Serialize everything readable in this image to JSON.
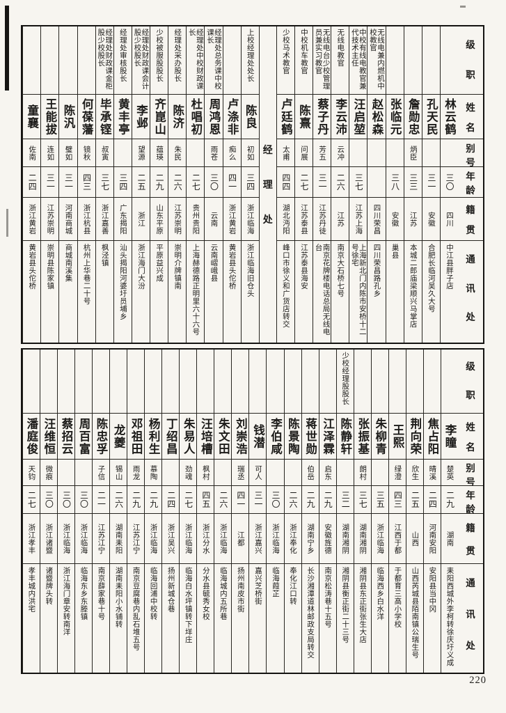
{
  "page": {
    "number": "220",
    "paper": "#f7f5f0",
    "ink": "#1c1b19"
  },
  "row_headers": {
    "rank": "级职",
    "name": "姓名",
    "alias": "别号",
    "age": "年龄",
    "origin": "籍贯",
    "address": "通讯处"
  },
  "sections": [
    {
      "id": "top",
      "divider_after": 9,
      "divider_label": "经理处",
      "persons": [
        {
          "rank": "",
          "name": "林云鹤",
          "alias": "",
          "age": "三〇",
          "origin": "四川",
          "address": "中江县胖子店"
        },
        {
          "rank": "",
          "name": "孔天民",
          "alias": "",
          "age": "三一",
          "origin": "安徽",
          "address": "合肥长临河吴久大号"
        },
        {
          "rank": "",
          "name": "詹勋忠",
          "alias": "炳臣",
          "age": "三三",
          "origin": "江苏",
          "address": "本城二郎庙梁顺兴马掌店"
        },
        {
          "rank": "",
          "name": "张临元",
          "alias": "",
          "age": "三八",
          "origin": "安徽",
          "address": "巢县"
        },
        {
          "rank": "无线电兼内燃机中校教官",
          "name": "赵松森",
          "alias": "",
          "age": "",
          "origin": "四川荣昌",
          "address": "四川荣昌路孔乡"
        },
        {
          "rank": "中校有线电教官兼代技术主任",
          "name": "汪启堃",
          "alias": "",
          "age": "三七",
          "origin": "江苏上海",
          "address": "上海新北门内陈市安桥十二号徐宅"
        },
        {
          "rank": "无线电教官",
          "name": "李云沛",
          "alias": "云冲",
          "age": "二六",
          "origin": "江苏",
          "address": "南京大石桥七号"
        },
        {
          "rank": "无线电台少校管理员兼实习教官",
          "name": "蔡子丹",
          "alias": "芳五",
          "age": "三一",
          "origin": "江苏丹徒",
          "address": "南京花牌楼电话总局无线电台"
        },
        {
          "rank": "中校机车教官",
          "name": "陈熹",
          "alias": "问展",
          "age": "二七",
          "origin": "江苏泰县",
          "address": "江苏泰县海安"
        },
        {
          "rank": "少校马术教官",
          "name": "卢廷鹤",
          "alias": "太甫",
          "age": "四四",
          "origin": "湖北沔阳",
          "address": "峰口市徐义和广货店转交"
        },
        {
          "rank": "上校经理处处长",
          "name": "陈良",
          "alias": "初如",
          "age": "三四",
          "origin": "浙江临海",
          "address": "浙江临海旧仓头"
        },
        {
          "rank": "",
          "name": "卢涤非",
          "alias": "痴么",
          "age": "四一",
          "origin": "浙江黄岩",
          "address": "黄岩县头佗桥"
        },
        {
          "rank": "经理处总务课中校课长",
          "name": "周鸿恩",
          "alias": "雨苍",
          "age": "三〇",
          "origin": "云南",
          "address": "云南嶍峨县"
        },
        {
          "rank": "经理处中校财政课长",
          "name": "杜唱初",
          "alias": "",
          "age": "二七",
          "origin": "贵州贵阳",
          "address": "上海赫德路正明里六十六号"
        },
        {
          "rank": "经理处采办股长",
          "name": "陈济",
          "alias": "朱民",
          "age": "二六",
          "origin": "江苏崇明",
          "address": "崇明介牌镇南"
        },
        {
          "rank": "少校被服股股长",
          "name": "齐崑山",
          "alias": "蕴瑛",
          "age": "二九",
          "origin": "山东平原",
          "address": "平原益兴成"
        },
        {
          "rank": "经理处财政课会计股少校股长",
          "name": "李邺",
          "alias": "望源",
          "age": "二五",
          "origin": "浙江",
          "address": "浙江海门大汾"
        },
        {
          "rank": "经理处审核股长",
          "name": "黄丰亭",
          "alias": "",
          "age": "三四",
          "origin": "广东揭阳",
          "address": "汕头揭阳河婆圩员埔乡"
        },
        {
          "rank": "经理处财政课金柜股少校股长",
          "name": "毕承铿",
          "alias": "叔寅",
          "age": "三七",
          "origin": "浙江嘉善",
          "address": "枫泾镇"
        },
        {
          "rank": "",
          "name": "何葆藩",
          "alias": "镜秋",
          "age": "四三",
          "origin": "浙江杭县",
          "address": "杭州上华巷二十号"
        },
        {
          "rank": "",
          "name": "陈汎",
          "alias": "璧如",
          "age": "三一",
          "origin": "河南商城",
          "address": "商城南溪集"
        },
        {
          "rank": "",
          "name": "王能拔",
          "alias": "连如",
          "age": "三一",
          "origin": "江苏崇明",
          "address": "崇明县陈家镇"
        },
        {
          "rank": "",
          "name": "童襄",
          "alias": "佐南",
          "age": "二四",
          "origin": "浙江黄岩",
          "address": "黄岩县头佗桥"
        }
      ]
    },
    {
      "id": "bottom",
      "divider_after": -1,
      "divider_label": "",
      "persons": [
        {
          "rank": "",
          "name": "李瞳",
          "alias": "楚英",
          "age": "二九",
          "origin": "湖南",
          "address": "耒阳西城外李柯转徐庆圩义成"
        },
        {
          "rank": "",
          "name": "焦占阳",
          "alias": "晴溪",
          "age": "二四",
          "origin": "河南安阳",
          "address": "安阳县当中冈"
        },
        {
          "rank": "",
          "name": "荆向荣",
          "alias": "欣生",
          "age": "二五",
          "origin": "山西",
          "address": "山西芮城县陌南镇公瑞生号"
        },
        {
          "rank": "",
          "name": "王熙",
          "alias": "绿澄",
          "age": "四三",
          "origin": "江西于都",
          "address": "于都育三高小学校"
        },
        {
          "rank": "",
          "name": "朱柳青",
          "alias": "",
          "age": "三五",
          "origin": "浙江临海",
          "address": "临海西乡白水洋"
        },
        {
          "rank": "",
          "name": "张振基",
          "alias": "朗村",
          "age": "三七",
          "origin": "湖南湘阴",
          "address": "湘阴县东正街张生大店"
        },
        {
          "rank": "少校经理股股长",
          "name": "陈静轩",
          "alias": "",
          "age": "三二",
          "origin": "湖南湘阴",
          "address": "湘阴县衡正街二十三号"
        },
        {
          "rank": "",
          "name": "江泽霖",
          "alias": "启东",
          "age": "二九",
          "origin": "安徽旌德",
          "address": "南京松涛巷十五号"
        },
        {
          "rank": "",
          "name": "蒋世勋",
          "alias": "伯岳",
          "age": "二九",
          "origin": "湖南宁乡",
          "address": "长沙湘潭道林邮政支局转交"
        },
        {
          "rank": "",
          "name": "陈景陶",
          "alias": "",
          "age": "二六",
          "origin": "浙江奉化",
          "address": "奉化江口转"
        },
        {
          "rank": "",
          "name": "李伯咸",
          "alias": "",
          "age": "三〇",
          "origin": "浙江临海",
          "address": "临海葭芷"
        },
        {
          "rank": "",
          "name": "钱潜",
          "alias": "可人",
          "age": "三一",
          "origin": "浙江嘉兴",
          "address": "嘉兴芝桥街"
        },
        {
          "rank": "",
          "name": "刘崇浩",
          "alias": "瑞丞",
          "age": "四一",
          "origin": "江都",
          "address": "扬州南皮市街"
        },
        {
          "rank": "",
          "name": "朱文田",
          "alias": "",
          "age": "二六",
          "origin": "浙江临海",
          "address": "临海城内五所巷"
        },
        {
          "rank": "",
          "name": "汪培槽",
          "alias": "枫村",
          "age": "四五",
          "origin": "浙江分水",
          "address": "分水县毓秀女校"
        },
        {
          "rank": "",
          "name": "朱易人",
          "alias": "劲魂",
          "age": "二七",
          "origin": "浙江临海",
          "address": "临海白水坪镇转下垟庄"
        },
        {
          "rank": "",
          "name": "丁绍昌",
          "alias": "",
          "age": "二四",
          "origin": "浙江吴兴",
          "address": "扬州新城仓巷"
        },
        {
          "rank": "",
          "name": "杨利生",
          "alias": "慕陶",
          "age": "二九",
          "origin": "浙江临海",
          "address": "临海回浦中校转"
        },
        {
          "rank": "",
          "name": "邓祖田",
          "alias": "雨龙",
          "age": "二九",
          "origin": "江苏江宁",
          "address": "南京豆腐巷内乱石堆五号"
        },
        {
          "rank": "",
          "name": "龙夔",
          "alias": "锡山",
          "age": "二六",
          "origin": "湖南耒阳",
          "address": "湖南耒阳小水铺转"
        },
        {
          "rank": "",
          "name": "陈忠孚",
          "alias": "子信",
          "age": "二一",
          "origin": "江苏江宁",
          "address": "南京薛家巷十号"
        },
        {
          "rank": "",
          "name": "周百富",
          "alias": "",
          "age": "三〇",
          "origin": "浙江临海",
          "address": "临海东乡东塍镇"
        },
        {
          "rank": "",
          "name": "蔡招云",
          "alias": "",
          "age": "三〇",
          "origin": "浙江临海",
          "address": "浙江海门章安转南洋"
        },
        {
          "rank": "",
          "name": "汪维恒",
          "alias": "微痕",
          "age": "三〇",
          "origin": "浙江诸暨",
          "address": "诸暨牌头转"
        },
        {
          "rank": "",
          "name": "潘庭俊",
          "alias": "天钧",
          "age": "二七",
          "origin": "浙江孝丰",
          "address": "孝丰城内洪宅"
        }
      ]
    }
  ]
}
